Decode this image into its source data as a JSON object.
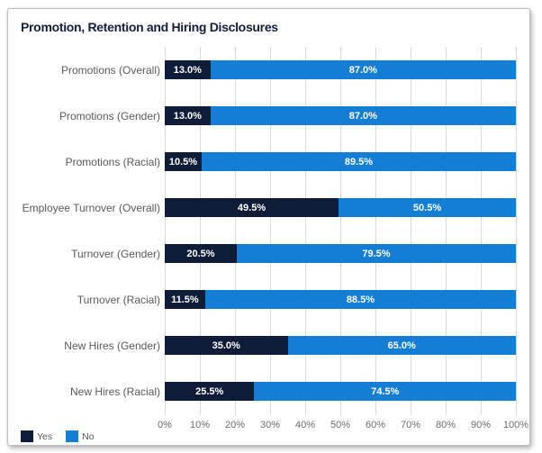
{
  "chart_data": {
    "type": "bar",
    "orientation": "horizontal-stacked",
    "title": "Promotion, Retention and Hiring Disclosures",
    "categories": [
      "Promotions (Overall)",
      "Promotions (Gender)",
      "Promotions (Racial)",
      "Employee Turnover (Overall)",
      "Turnover (Gender)",
      "Turnover (Racial)",
      "New Hires (Gender)",
      "New Hires (Racial)"
    ],
    "series": [
      {
        "name": "Yes",
        "values": [
          13.0,
          13.0,
          10.5,
          49.5,
          20.5,
          11.5,
          35.0,
          25.5
        ]
      },
      {
        "name": "No",
        "values": [
          87.0,
          87.0,
          89.5,
          50.5,
          79.5,
          88.5,
          65.0,
          74.5
        ]
      }
    ],
    "xlim": [
      0,
      100
    ],
    "xtick_labels": [
      "0%",
      "10%",
      "20%",
      "30%",
      "40%",
      "50%",
      "60%",
      "70%",
      "80%",
      "90%",
      "100%"
    ],
    "grid": "vertical",
    "legend_position": "bottom-left",
    "colors": {
      "yes": "#0e1c38",
      "no": "#137ed3",
      "title": "#131e3c",
      "gridline": "#d9d9d9",
      "label_gray": "#58595b"
    },
    "legend": {
      "yes_label": "Yes",
      "no_label": "No"
    },
    "rows": [
      {
        "label": "Promotions (Overall)",
        "yes": 13.0,
        "no": 87.0,
        "yes_text": "13.0%",
        "no_text": "87.0%"
      },
      {
        "label": "Promotions (Gender)",
        "yes": 13.0,
        "no": 87.0,
        "yes_text": "13.0%",
        "no_text": "87.0%"
      },
      {
        "label": "Promotions (Racial)",
        "yes": 10.5,
        "no": 89.5,
        "yes_text": "10.5%",
        "no_text": "89.5%"
      },
      {
        "label": "Employee Turnover (Overall)",
        "yes": 49.5,
        "no": 50.5,
        "yes_text": "49.5%",
        "no_text": "50.5%"
      },
      {
        "label": "Turnover (Gender)",
        "yes": 20.5,
        "no": 79.5,
        "yes_text": "20.5%",
        "no_text": "79.5%"
      },
      {
        "label": "Turnover (Racial)",
        "yes": 11.5,
        "no": 88.5,
        "yes_text": "11.5%",
        "no_text": "88.5%"
      },
      {
        "label": "New Hires (Gender)",
        "yes": 35.0,
        "no": 65.0,
        "yes_text": "35.0%",
        "no_text": "65.0%"
      },
      {
        "label": "New Hires (Racial)",
        "yes": 25.5,
        "no": 74.5,
        "yes_text": "25.5%",
        "no_text": "74.5%"
      }
    ]
  }
}
